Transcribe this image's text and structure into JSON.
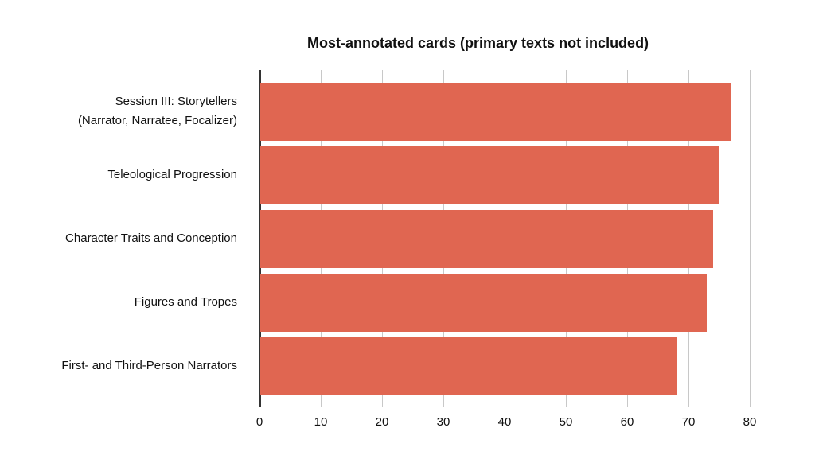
{
  "chart_data": {
    "type": "bar",
    "orientation": "horizontal",
    "title": "Most-annotated cards (primary texts not included)",
    "categories": [
      "Session III: Storytellers (Narrator, Narratee, Focalizer)",
      "Teleological Progression",
      "Character Traits and Conception",
      "Figures and Tropes",
      "First- and Third-Person Narrators"
    ],
    "category_lines": [
      [
        "Session III: Storytellers",
        "(Narrator, Narratee, Focalizer)"
      ],
      [
        "Teleological Progression"
      ],
      [
        "Character Traits and Conception"
      ],
      [
        "Figures and Tropes"
      ],
      [
        "First- and Third-Person Narrators"
      ]
    ],
    "values": [
      77,
      75,
      74,
      73,
      68
    ],
    "xlabel": "",
    "ylabel": "",
    "xlim": [
      0,
      80
    ],
    "xticks": [
      "0",
      "10",
      "20",
      "30",
      "40",
      "50",
      "60",
      "70",
      "80"
    ],
    "grid": true,
    "legend": null,
    "bar_color": "#e06651"
  }
}
